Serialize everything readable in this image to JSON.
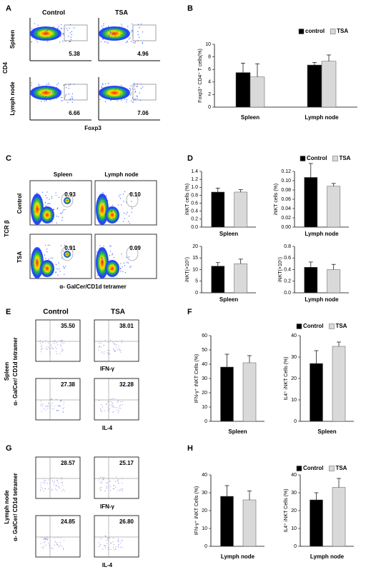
{
  "panel_labels": [
    "A",
    "B",
    "C",
    "D",
    "E",
    "F",
    "G",
    "H"
  ],
  "flow_panels": [
    {
      "columns": [
        "Control",
        "TSA"
      ],
      "rows": [
        "Spleen",
        "Lymph node"
      ],
      "y_label": "CD4",
      "x_label": "Foxp3",
      "gates": [
        [
          "5.38",
          "4.96"
        ],
        [
          "6.66",
          "7.06"
        ]
      ]
    },
    {
      "columns": [
        "Spleen",
        "Lymph node"
      ],
      "rows": [
        "Control",
        "TSA"
      ],
      "y_label": "TCR β",
      "x_label": "α- GalCer/CD1d tetramer",
      "gates": [
        [
          "0.93",
          "0.10"
        ],
        [
          "0.91",
          "0.09"
        ]
      ]
    },
    {
      "columns": [
        "Control",
        "TSA"
      ],
      "row": "Spleen",
      "y_label": "α- GalCer/ CD1d tetramer",
      "x_labels": [
        "IFN-γ",
        "IL-4"
      ],
      "gates": [
        [
          "35.50",
          "38.01"
        ],
        [
          "27.38",
          "32.28"
        ]
      ]
    },
    {
      "row": "Lymph node",
      "y_label": "α- GalCer/ CD1d tetramer",
      "x_labels": [
        "IFN-γ",
        "IL-4"
      ],
      "gates": [
        [
          "28.57",
          "25.17"
        ],
        [
          "24.85",
          "26.80"
        ]
      ]
    }
  ],
  "chart_data": [
    {
      "type": "bar",
      "ylabel": "Foxp3⁺ CD4⁺ T cells(%)",
      "categories": [
        "Spleen",
        "Lymph node"
      ],
      "legend": true,
      "series": [
        {
          "name": "control",
          "color": "#000000",
          "values": [
            5.5,
            6.7
          ],
          "errors": [
            1.5,
            0.4
          ]
        },
        {
          "name": "TSA",
          "color": "#d9d9d9",
          "values": [
            4.8,
            7.3
          ],
          "errors": [
            2.1,
            1.0
          ]
        }
      ],
      "ylim": [
        0,
        10
      ],
      "yticks": [
        0,
        2,
        4,
        6,
        8,
        10
      ]
    },
    {
      "type": "bar",
      "ylabel": "iNKT cells (%)",
      "categories": [
        "Spleen"
      ],
      "legend": true,
      "series": [
        {
          "name": "Control",
          "color": "#000000",
          "values": [
            0.88
          ],
          "errors": [
            0.1
          ]
        },
        {
          "name": "TSA",
          "color": "#d9d9d9",
          "values": [
            0.88
          ],
          "errors": [
            0.06
          ]
        }
      ],
      "ylim": [
        0,
        1.4
      ],
      "yticks": [
        {
          "value": 0,
          "label": "0.0"
        },
        0.2,
        0.4,
        0.6,
        0.8,
        {
          "value": 1,
          "label": "1.0"
        },
        1.2,
        1.4
      ]
    },
    {
      "type": "bar",
      "ylabel": "iNKT cells (%)",
      "categories": [
        "Lymph node"
      ],
      "series": [
        {
          "color": "#000000",
          "values": [
            0.107
          ],
          "errors": [
            0.03
          ]
        },
        {
          "color": "#d9d9d9",
          "values": [
            0.088
          ],
          "errors": [
            0.006
          ]
        }
      ],
      "ylim": [
        0,
        0.12
      ],
      "yticks": [
        {
          "value": 0,
          "label": "0.00"
        },
        {
          "value": 0.02,
          "label": "0.02"
        },
        {
          "value": 0.04,
          "label": "0.04"
        },
        {
          "value": 0.06,
          "label": "0.06"
        },
        {
          "value": 0.08,
          "label": "0.08"
        },
        {
          "value": 0.1,
          "label": "0.10"
        },
        {
          "value": 0.12,
          "label": "0.12"
        }
      ]
    },
    {
      "type": "bar",
      "ylabel": "iNKT(×10⁵)",
      "categories": [
        "Spleen"
      ],
      "series": [
        {
          "color": "#000000",
          "values": [
            11.5
          ],
          "errors": [
            1.5
          ]
        },
        {
          "color": "#d9d9d9",
          "values": [
            12.5
          ],
          "errors": [
            2
          ]
        }
      ],
      "ylim": [
        0,
        20
      ],
      "yticks": [
        0,
        5,
        10,
        15,
        20
      ]
    },
    {
      "type": "bar",
      "ylabel": "iNKT(×10⁵)",
      "categories": [
        "Lymph node"
      ],
      "series": [
        {
          "color": "#000000",
          "values": [
            0.44
          ],
          "errors": [
            0.09
          ]
        },
        {
          "color": "#d9d9d9",
          "values": [
            0.4
          ],
          "errors": [
            0.09
          ]
        }
      ],
      "ylim": [
        0,
        0.8
      ],
      "yticks": [
        {
          "value": 0,
          "label": "0.0"
        },
        0.2,
        0.4,
        0.6,
        0.8
      ]
    },
    {
      "type": "bar",
      "ylabel": "IFN-γ⁺ iNKT Cells (%)",
      "categories": [
        "Spleen"
      ],
      "legend": true,
      "series": [
        {
          "name": "Control",
          "color": "#000000",
          "values": [
            38
          ],
          "errors": [
            9
          ]
        },
        {
          "name": "TSA",
          "color": "#d9d9d9",
          "values": [
            41
          ],
          "errors": [
            5
          ]
        }
      ],
      "ylim": [
        0,
        60
      ],
      "yticks": [
        0,
        10,
        20,
        30,
        40,
        50,
        60
      ]
    },
    {
      "type": "bar",
      "ylabel": "IL4⁺ iNKT Cells (%)",
      "categories": [
        "Spleen"
      ],
      "series": [
        {
          "color": "#000000",
          "values": [
            27
          ],
          "errors": [
            6
          ]
        },
        {
          "color": "#d9d9d9",
          "values": [
            35
          ],
          "errors": [
            2
          ]
        }
      ],
      "ylim": [
        0,
        40
      ],
      "yticks": [
        0,
        10,
        20,
        30,
        40
      ]
    },
    {
      "type": "bar",
      "ylabel": "IFN-γ⁺ iNKT Cells (%)",
      "categories": [
        "Lymph node"
      ],
      "legend": true,
      "series": [
        {
          "name": "Control",
          "color": "#000000",
          "values": [
            28
          ],
          "errors": [
            6
          ]
        },
        {
          "name": "TSA",
          "color": "#d9d9d9",
          "values": [
            26
          ],
          "errors": [
            5
          ]
        }
      ],
      "ylim": [
        0,
        40
      ],
      "yticks": [
        0,
        10,
        20,
        30,
        40
      ]
    },
    {
      "type": "bar",
      "ylabel": "IL4⁺ iNKT Cells (%)",
      "categories": [
        "Lymph node"
      ],
      "series": [
        {
          "color": "#000000",
          "values": [
            26
          ],
          "errors": [
            4
          ]
        },
        {
          "color": "#d9d9d9",
          "values": [
            33
          ],
          "errors": [
            5
          ]
        }
      ],
      "ylim": [
        0,
        40
      ],
      "yticks": [
        0,
        10,
        20,
        30,
        40
      ]
    }
  ]
}
